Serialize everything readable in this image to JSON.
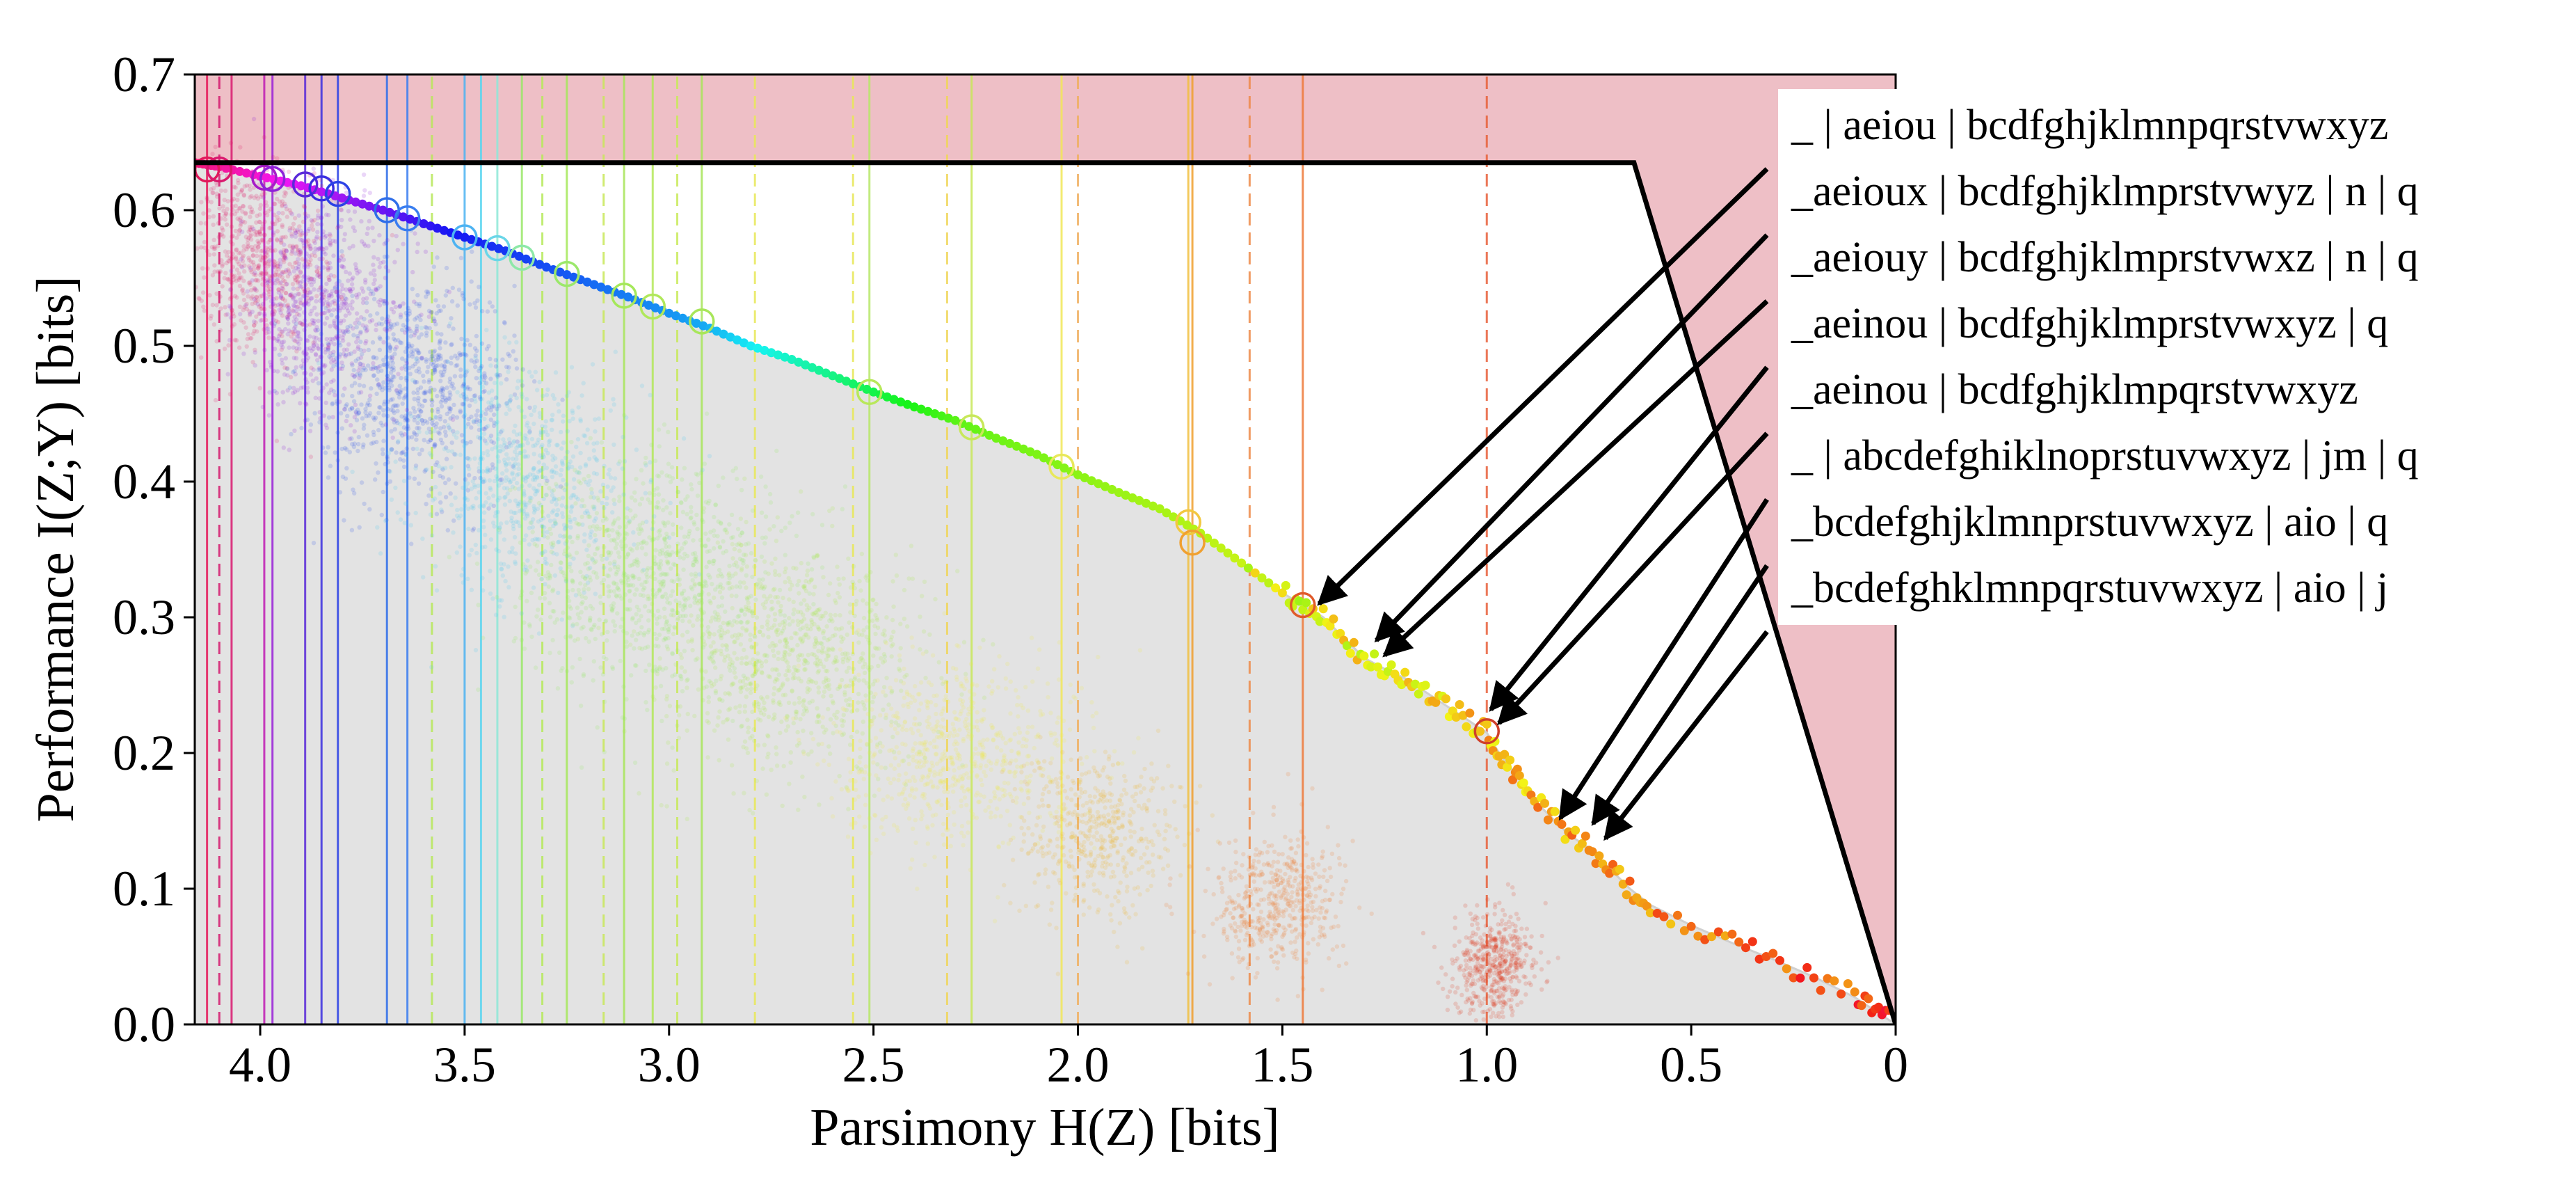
{
  "chart_data": {
    "type": "scatter",
    "xlabel": "Parsimony H(Z) [bits]",
    "ylabel": "Performance I(Z;Y) [bits]",
    "xlim": [
      4.16,
      0
    ],
    "ylim": [
      0,
      0.7
    ],
    "x_ticks": [
      4.0,
      3.5,
      3.0,
      2.5,
      2.0,
      1.5,
      1.0,
      0.5,
      0
    ],
    "x_tick_labels": [
      "4.0",
      "3.5",
      "3.0",
      "2.5",
      "2.0",
      "1.5",
      "1.0",
      "0.5",
      "0"
    ],
    "y_ticks": [
      0.0,
      0.1,
      0.2,
      0.3,
      0.4,
      0.5,
      0.6,
      0.7
    ],
    "y_tick_labels": [
      "0.0",
      "0.1",
      "0.2",
      "0.3",
      "0.4",
      "0.5",
      "0.6",
      "0.7"
    ],
    "grid": false,
    "max_performance_line": 0.635,
    "infeasible_line_endpoints": [
      [
        0.64,
        0.635
      ],
      [
        0,
        0
      ]
    ],
    "colors": {
      "infeasible_region": "#eebfc6",
      "feasible_region": "#e3e3e3",
      "frontier_line": "#d0d0d0",
      "arrow": "#000000"
    },
    "vertical_markers": [
      {
        "x": 4.13,
        "color": "#e6195b",
        "style": "solid"
      },
      {
        "x": 4.1,
        "color": "#d4196e",
        "style": "dashed"
      },
      {
        "x": 4.07,
        "color": "#d91a70",
        "style": "solid"
      },
      {
        "x": 3.99,
        "color": "#c01cb4",
        "style": "solid"
      },
      {
        "x": 3.97,
        "color": "#9a21d8",
        "style": "solid"
      },
      {
        "x": 3.89,
        "color": "#5a2ad9",
        "style": "solid"
      },
      {
        "x": 3.85,
        "color": "#3a2fe0",
        "style": "solid"
      },
      {
        "x": 3.81,
        "color": "#2c42e6",
        "style": "solid"
      },
      {
        "x": 3.69,
        "color": "#2f6ee9",
        "style": "solid"
      },
      {
        "x": 3.64,
        "color": "#3a7ef0",
        "style": "solid"
      },
      {
        "x": 3.58,
        "color": "#b8e85a",
        "style": "dashed"
      },
      {
        "x": 3.5,
        "color": "#4db3f2",
        "style": "solid"
      },
      {
        "x": 3.46,
        "color": "#5ad6f0",
        "style": "solid"
      },
      {
        "x": 3.42,
        "color": "#8ee8d8",
        "style": "solid"
      },
      {
        "x": 3.36,
        "color": "#9be86a",
        "style": "solid"
      },
      {
        "x": 3.31,
        "color": "#b7ea5c",
        "style": "dashed"
      },
      {
        "x": 3.25,
        "color": "#a5e85a",
        "style": "solid"
      },
      {
        "x": 3.16,
        "color": "#c8e85a",
        "style": "dashed"
      },
      {
        "x": 3.11,
        "color": "#a8e65a",
        "style": "solid"
      },
      {
        "x": 3.04,
        "color": "#b4e85a",
        "style": "solid"
      },
      {
        "x": 2.98,
        "color": "#c8ea5a",
        "style": "dashed"
      },
      {
        "x": 2.92,
        "color": "#a8e65a",
        "style": "solid"
      },
      {
        "x": 2.79,
        "color": "#e8e85a",
        "style": "dashed"
      },
      {
        "x": 2.55,
        "color": "#e8e85a",
        "style": "dashed"
      },
      {
        "x": 2.51,
        "color": "#b8e86a",
        "style": "solid"
      },
      {
        "x": 2.32,
        "color": "#f0d65a",
        "style": "dashed"
      },
      {
        "x": 2.26,
        "color": "#c8e85a",
        "style": "solid"
      },
      {
        "x": 2.04,
        "color": "#f2e85a",
        "style": "solid"
      },
      {
        "x": 2.0,
        "color": "#f0b060",
        "style": "dashed"
      },
      {
        "x": 1.73,
        "color": "#f2c040",
        "style": "solid"
      },
      {
        "x": 1.72,
        "color": "#f0a030",
        "style": "solid"
      },
      {
        "x": 1.58,
        "color": "#ee8a4a",
        "style": "dashed"
      },
      {
        "x": 1.45,
        "color": "#ee7a3a",
        "style": "solid"
      },
      {
        "x": 1.0,
        "color": "#e8603a",
        "style": "dashed"
      },
      {
        "x": 0.0,
        "color": "#d0302a",
        "style": "solid"
      }
    ],
    "frontier_circles": [
      {
        "x": 4.13,
        "y": 0.63,
        "color": "#e0195b"
      },
      {
        "x": 4.1,
        "y": 0.63,
        "color": "#d9196e"
      },
      {
        "x": 3.99,
        "y": 0.624,
        "color": "#a61cc8"
      },
      {
        "x": 3.97,
        "y": 0.623,
        "color": "#8e22d8"
      },
      {
        "x": 3.89,
        "y": 0.619,
        "color": "#5a2ad9"
      },
      {
        "x": 3.85,
        "y": 0.616,
        "color": "#3a2fe0"
      },
      {
        "x": 3.81,
        "y": 0.612,
        "color": "#2c42e6"
      },
      {
        "x": 3.69,
        "y": 0.6,
        "color": "#2f6ee9"
      },
      {
        "x": 3.64,
        "y": 0.594,
        "color": "#3a7ef0"
      },
      {
        "x": 3.5,
        "y": 0.58,
        "color": "#4db3f2"
      },
      {
        "x": 3.42,
        "y": 0.572,
        "color": "#6ad6e8"
      },
      {
        "x": 3.36,
        "y": 0.565,
        "color": "#8ee8a8"
      },
      {
        "x": 3.25,
        "y": 0.553,
        "color": "#9be86a"
      },
      {
        "x": 3.11,
        "y": 0.537,
        "color": "#a5e85a"
      },
      {
        "x": 3.04,
        "y": 0.529,
        "color": "#b0e85a"
      },
      {
        "x": 2.92,
        "y": 0.518,
        "color": "#a8e65a"
      },
      {
        "x": 2.51,
        "y": 0.466,
        "color": "#b8e85a"
      },
      {
        "x": 2.26,
        "y": 0.44,
        "color": "#c8e85a"
      },
      {
        "x": 2.04,
        "y": 0.411,
        "color": "#e8e85a"
      },
      {
        "x": 1.73,
        "y": 0.37,
        "color": "#f2c840"
      },
      {
        "x": 1.72,
        "y": 0.355,
        "color": "#f0a030"
      },
      {
        "x": 1.45,
        "y": 0.309,
        "color": "#e05a2a"
      },
      {
        "x": 1.0,
        "y": 0.216,
        "color": "#d0402a"
      }
    ],
    "scatter_clusters": [
      {
        "cx": 4.0,
        "cy": 0.565,
        "sx": 0.08,
        "sy": 0.035,
        "n": 700,
        "color": "#e0196a"
      },
      {
        "cx": 3.85,
        "cy": 0.53,
        "sx": 0.1,
        "sy": 0.04,
        "n": 700,
        "color": "#8a1ed8"
      },
      {
        "cx": 3.62,
        "cy": 0.47,
        "sx": 0.12,
        "sy": 0.04,
        "n": 800,
        "color": "#2e52e8"
      },
      {
        "cx": 3.35,
        "cy": 0.4,
        "sx": 0.14,
        "sy": 0.04,
        "n": 700,
        "color": "#50c8f0"
      },
      {
        "cx": 3.05,
        "cy": 0.33,
        "sx": 0.16,
        "sy": 0.04,
        "n": 900,
        "color": "#90e860"
      },
      {
        "cx": 2.7,
        "cy": 0.27,
        "sx": 0.16,
        "sy": 0.04,
        "n": 900,
        "color": "#a8e848"
      },
      {
        "cx": 2.3,
        "cy": 0.2,
        "sx": 0.14,
        "sy": 0.035,
        "n": 700,
        "color": "#eeea50"
      },
      {
        "cx": 1.95,
        "cy": 0.14,
        "sx": 0.1,
        "sy": 0.03,
        "n": 500,
        "color": "#f0b830"
      },
      {
        "cx": 1.52,
        "cy": 0.09,
        "sx": 0.08,
        "sy": 0.025,
        "n": 500,
        "color": "#ee7a2a"
      },
      {
        "cx": 0.98,
        "cy": 0.045,
        "sx": 0.05,
        "sy": 0.018,
        "n": 500,
        "color": "#dc3a1a"
      }
    ],
    "frontier_points": [
      [
        4.16,
        0.635
      ],
      [
        4.1,
        0.632
      ],
      [
        4.0,
        0.625
      ],
      [
        3.9,
        0.618
      ],
      [
        3.8,
        0.609
      ],
      [
        3.7,
        0.6
      ],
      [
        3.6,
        0.59
      ],
      [
        3.5,
        0.58
      ],
      [
        3.4,
        0.57
      ],
      [
        3.3,
        0.558
      ],
      [
        3.2,
        0.547
      ],
      [
        3.1,
        0.536
      ],
      [
        3.0,
        0.524
      ],
      [
        2.9,
        0.513
      ],
      [
        2.8,
        0.5
      ],
      [
        2.7,
        0.49
      ],
      [
        2.6,
        0.478
      ],
      [
        2.5,
        0.466
      ],
      [
        2.4,
        0.455
      ],
      [
        2.3,
        0.445
      ],
      [
        2.2,
        0.432
      ],
      [
        2.1,
        0.42
      ],
      [
        2.0,
        0.405
      ],
      [
        1.9,
        0.392
      ],
      [
        1.8,
        0.38
      ],
      [
        1.7,
        0.362
      ],
      [
        1.6,
        0.34
      ],
      [
        1.5,
        0.318
      ],
      [
        1.45,
        0.309
      ],
      [
        1.4,
        0.3
      ],
      [
        1.35,
        0.285
      ],
      [
        1.3,
        0.27
      ],
      [
        1.25,
        0.262
      ],
      [
        1.2,
        0.255
      ],
      [
        1.15,
        0.245
      ],
      [
        1.1,
        0.235
      ],
      [
        1.05,
        0.225
      ],
      [
        1.0,
        0.215
      ],
      [
        0.97,
        0.2
      ],
      [
        0.93,
        0.185
      ],
      [
        0.9,
        0.17
      ],
      [
        0.85,
        0.155
      ],
      [
        0.8,
        0.14
      ],
      [
        0.75,
        0.13
      ],
      [
        0.7,
        0.115
      ],
      [
        0.65,
        0.1
      ],
      [
        0.6,
        0.088
      ],
      [
        0.5,
        0.073
      ],
      [
        0.4,
        0.06
      ],
      [
        0.3,
        0.048
      ],
      [
        0.2,
        0.035
      ],
      [
        0.1,
        0.02
      ],
      [
        0.05,
        0.01
      ],
      [
        0.0,
        0.0
      ]
    ],
    "annotations": [
      {
        "text": "_ | aeiou | bcdfghjklmnpqrstvwxyz",
        "target": null
      },
      {
        "text": "_aeioux | bcdfghjklmprstvwyz | n | q",
        "target": [
          1.41,
          0.31
        ]
      },
      {
        "text": "_aeiouy | bcdfghjklmprstvwxz | n | q",
        "target": [
          1.27,
          0.283
        ]
      },
      {
        "text": "_aeinou | bcdfghjklmprstvwxyz | q",
        "target": [
          1.25,
          0.272
        ]
      },
      {
        "text": "_aeinou | bcdfghjklmpqrstvwxyz",
        "target": [
          0.99,
          0.232
        ]
      },
      {
        "text": "_ | abcdefghiklnoprstuvwxyz | jm | q",
        "target": [
          0.97,
          0.222
        ]
      },
      {
        "text": "_bcdefghjklmnprstuvwxyz | aio | q",
        "target": [
          0.82,
          0.152
        ]
      },
      {
        "text": "_bcdefghklmnpqrstuvwxyz | aio | j",
        "target": [
          0.74,
          0.148
        ]
      },
      {
        "text": "",
        "target": [
          0.71,
          0.137
        ]
      }
    ]
  }
}
